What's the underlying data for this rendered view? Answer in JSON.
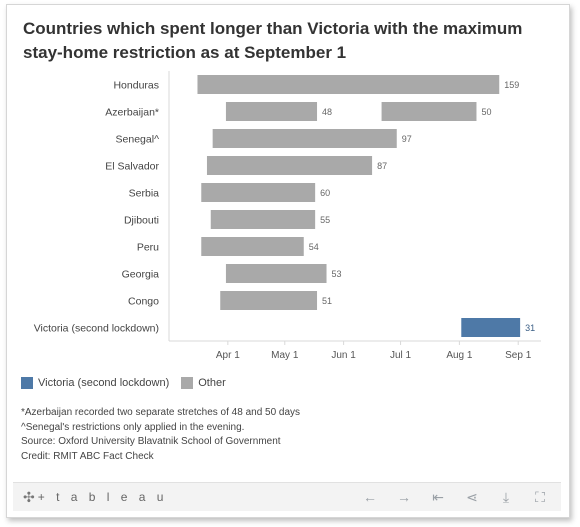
{
  "chart_data": {
    "type": "bar",
    "title": "Countries which spent longer than Victoria with the maximum stay-home restriction as at September 1",
    "x_axis": {
      "min": "2020-03-01",
      "max": "2020-09-13",
      "ticks": [
        "Apr 1",
        "May 1",
        "Jun 1",
        "Jul 1",
        "Aug 1",
        "Sep 1"
      ]
    },
    "categories": [
      "Honduras",
      "Azerbaijan*",
      "Senegal^",
      "El Salvador",
      "Serbia",
      "Djibouti",
      "Peru",
      "Georgia",
      "Congo",
      "Victoria (second lockdown)"
    ],
    "bars": [
      {
        "category": "Honduras",
        "series": "Other",
        "start": "2020-03-16",
        "end": "2020-08-22",
        "days": 159
      },
      {
        "category": "Azerbaijan*",
        "series": "Other",
        "start": "2020-03-31",
        "end": "2020-05-18",
        "days": 48
      },
      {
        "category": "Azerbaijan*",
        "series": "Other",
        "start": "2020-06-21",
        "end": "2020-08-10",
        "days": 50
      },
      {
        "category": "Senegal^",
        "series": "Other",
        "start": "2020-03-24",
        "end": "2020-06-29",
        "days": 97
      },
      {
        "category": "El Salvador",
        "series": "Other",
        "start": "2020-03-21",
        "end": "2020-06-16",
        "days": 87
      },
      {
        "category": "Serbia",
        "series": "Other",
        "start": "2020-03-18",
        "end": "2020-05-17",
        "days": 60
      },
      {
        "category": "Djibouti",
        "series": "Other",
        "start": "2020-03-23",
        "end": "2020-05-17",
        "days": 55
      },
      {
        "category": "Peru",
        "series": "Other",
        "start": "2020-03-18",
        "end": "2020-05-11",
        "days": 54
      },
      {
        "category": "Georgia",
        "series": "Other",
        "start": "2020-03-31",
        "end": "2020-05-23",
        "days": 53
      },
      {
        "category": "Congo",
        "series": "Other",
        "start": "2020-03-28",
        "end": "2020-05-18",
        "days": 51
      },
      {
        "category": "Victoria (second lockdown)",
        "series": "Victoria (second lockdown)",
        "start": "2020-08-02",
        "end": "2020-09-02",
        "days": 31
      }
    ],
    "legend": {
      "position": "bottom-left",
      "items": [
        {
          "label": "Victoria (second lockdown)",
          "color": "#4e79a7"
        },
        {
          "label": "Other",
          "color": "#a9a9a9"
        }
      ]
    },
    "grid": false
  },
  "notes": [
    "*Azerbaijan recorded two separate stretches of 48 and 50 days",
    "^Senegal's restrictions only applied in the evening.",
    "Source: Oxford University Blavatnik School of Government",
    "Credit: RMIT ABC Fact Check"
  ],
  "toolbar": {
    "logo_text": "+ t a b l e a u",
    "icons": [
      "undo-icon",
      "redo-icon",
      "revert-icon",
      "share-icon",
      "download-icon",
      "fullscreen-icon"
    ]
  }
}
